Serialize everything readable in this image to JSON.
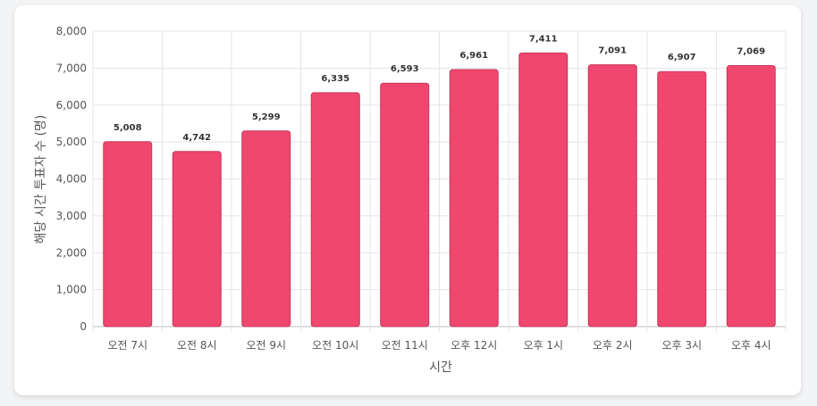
{
  "chart_data": {
    "type": "bar",
    "categories": [
      "오전 7시",
      "오전 8시",
      "오전 9시",
      "오전 10시",
      "오전 11시",
      "오후 12시",
      "오후 1시",
      "오후 2시",
      "오후 3시",
      "오후 4시"
    ],
    "values": [
      5008,
      4742,
      5299,
      6335,
      6593,
      6961,
      7411,
      7091,
      6907,
      7069
    ],
    "value_labels": [
      "5,008",
      "4,742",
      "5,299",
      "6,335",
      "6,593",
      "6,961",
      "7,411",
      "7,091",
      "6,907",
      "7,069"
    ],
    "xlabel": "시간",
    "ylabel": "해당 시간 투표자 수 (명)",
    "ylim": [
      0,
      8000
    ],
    "yticks": [
      0,
      1000,
      2000,
      3000,
      4000,
      5000,
      6000,
      7000,
      8000
    ],
    "ytick_labels": [
      "0",
      "1,000",
      "2,000",
      "3,000",
      "4,000",
      "5,000",
      "6,000",
      "7,000",
      "8,000"
    ],
    "grid": true,
    "bar_color": "#ef476f"
  }
}
